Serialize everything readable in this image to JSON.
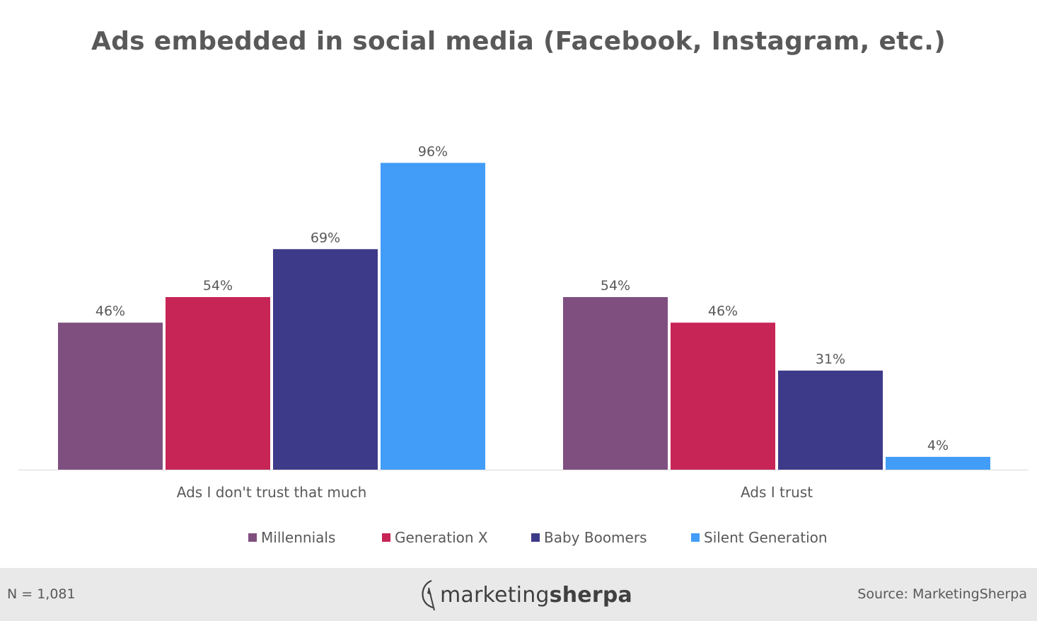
{
  "chart_data": {
    "type": "bar",
    "title": "Ads embedded in social media (Facebook, Instagram, etc.)",
    "categories": [
      "Ads I don't trust that much",
      "Ads I trust"
    ],
    "series": [
      {
        "name": "Millennials",
        "color": "#7f4f7f",
        "values": [
          46,
          54
        ],
        "labels": [
          "46%",
          "54%"
        ]
      },
      {
        "name": "Generation X",
        "color": "#c72556",
        "values": [
          54,
          46
        ],
        "labels": [
          "54%",
          "46%"
        ]
      },
      {
        "name": "Baby Boomers",
        "color": "#3e3a8a",
        "values": [
          69,
          31
        ],
        "labels": [
          "69%",
          "31%"
        ]
      },
      {
        "name": "Silent Generation",
        "color": "#429df9",
        "values": [
          96,
          4
        ],
        "labels": [
          "96%",
          "4%"
        ]
      }
    ],
    "xlabel": "",
    "ylabel": "",
    "ylim": [
      0,
      100
    ],
    "grid": false,
    "legend": "bottom"
  },
  "footer": {
    "note": "N = 1,081",
    "logo_light": "marketing",
    "logo_bold": "sherpa",
    "source": "Source: MarketingSherpa"
  }
}
